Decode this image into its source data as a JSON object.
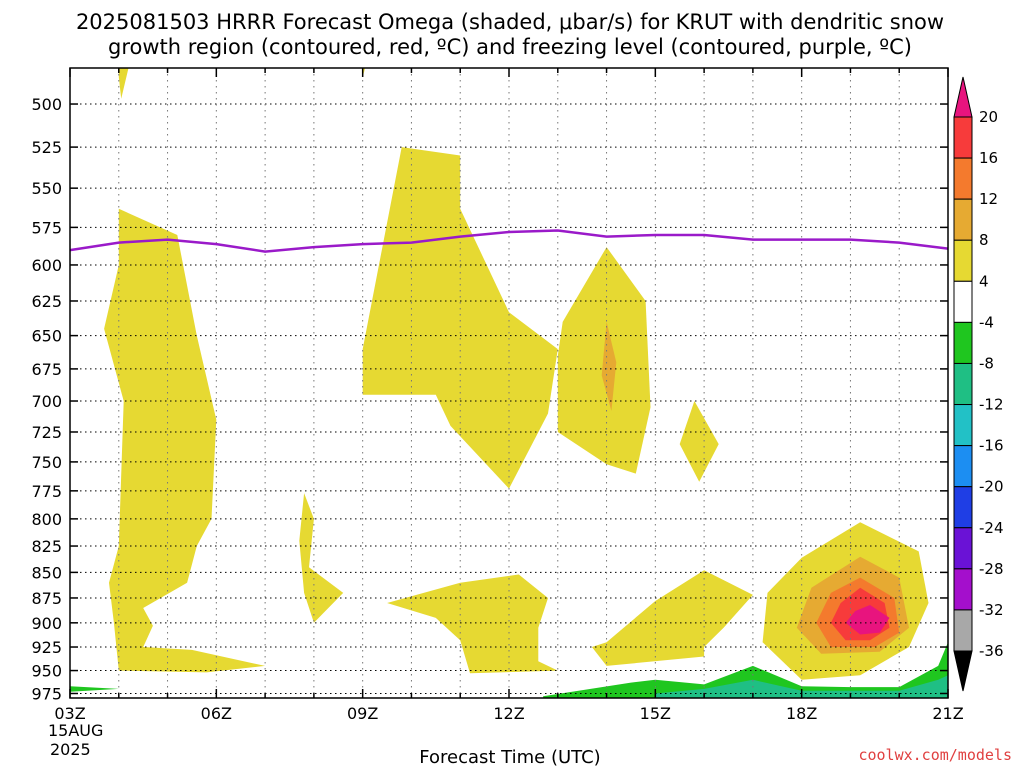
{
  "title": {
    "line1": "2025081503 HRRR Forecast Omega (shaded, μbar/s) for KRUT with dendritic snow",
    "line2": "growth region (contoured, red, ºC) and freezing level (contoured, purple, ºC)"
  },
  "credit": "coolwx.com/models",
  "chart_data": {
    "type": "time-height contour",
    "xlabel": "Forecast Time (UTC)",
    "x_ticks": [
      {
        "hour": 0,
        "label": "03Z"
      },
      {
        "hour": 3,
        "label": "06Z"
      },
      {
        "hour": 6,
        "label": "09Z"
      },
      {
        "hour": 9,
        "label": "12Z"
      },
      {
        "hour": 12,
        "label": "15Z"
      },
      {
        "hour": 15,
        "label": "18Z"
      },
      {
        "hour": 18,
        "label": "21Z"
      }
    ],
    "x_start_date": [
      "15AUG",
      "2025"
    ],
    "xlim": [
      0,
      18
    ],
    "ylabel": "",
    "y_scale": "log-pressure",
    "ylim_hpa": [
      980,
      480
    ],
    "y_ticks": [
      500,
      525,
      550,
      575,
      600,
      625,
      650,
      675,
      700,
      725,
      750,
      775,
      800,
      825,
      850,
      875,
      900,
      925,
      950,
      975
    ],
    "grid": true,
    "colorbar": {
      "labels": [
        "20",
        "16",
        "12",
        "8",
        "4",
        "-4",
        "-8",
        "-12",
        "-16",
        "-20",
        "-24",
        "-28",
        "-32",
        "-36"
      ],
      "colors": {
        "above_20": "#e8147e",
        "16_20": "#f73b3b",
        "12_16": "#f47a2d",
        "8_12": "#e6aa32",
        "4_8": "#e6d932",
        "neutral": "#ffffff",
        "m8_m4": "#1fc61f",
        "m12_m8": "#1fbf84",
        "m16_m12": "#22c1c6",
        "m20_m16": "#1c8ef2",
        "m24_m20": "#1f3ee5",
        "m28_m24": "#6a12d6",
        "m32_m28": "#a40fcc",
        "m36_m32": "#a8a8a8",
        "below_m36": "#000000"
      }
    },
    "freezing_level_color": "#9a1ac9",
    "ground_color": "#a0522d",
    "freezing_level": {
      "hour": [
        0,
        1,
        2,
        3,
        4,
        5,
        6,
        7,
        8,
        9,
        10,
        11,
        12,
        13,
        14,
        15,
        16,
        17,
        18
      ],
      "pressure": [
        590,
        585,
        583,
        586,
        591,
        588,
        586,
        585,
        581,
        578,
        577,
        581,
        580,
        580,
        583,
        583,
        583,
        585,
        589
      ]
    },
    "omega_regions": [
      {
        "level": "4_8",
        "points": [
          [
            1.0,
            480
          ],
          [
            1.2,
            480
          ],
          [
            1.05,
            497
          ],
          [
            1.0,
            485
          ]
        ]
      },
      {
        "level": "4_8",
        "points": [
          [
            6.0,
            480
          ],
          [
            6.05,
            480
          ],
          [
            6.0,
            485
          ]
        ]
      },
      {
        "level": "4_8",
        "points": [
          [
            1.0,
            563
          ],
          [
            2.2,
            580
          ],
          [
            2.6,
            650
          ],
          [
            3.0,
            715
          ],
          [
            2.9,
            800
          ],
          [
            2.6,
            825
          ],
          [
            2.4,
            860
          ],
          [
            1.5,
            885
          ],
          [
            1.7,
            903
          ],
          [
            1.5,
            925
          ],
          [
            2.5,
            928
          ],
          [
            4.0,
            945
          ],
          [
            2.8,
            952
          ],
          [
            1.0,
            950
          ],
          [
            0.9,
            900
          ],
          [
            0.8,
            860
          ],
          [
            1.0,
            825
          ],
          [
            1.1,
            700
          ],
          [
            0.7,
            645
          ],
          [
            1.0,
            600
          ]
        ]
      },
      {
        "level": "4_8",
        "points": [
          [
            4.8,
            777
          ],
          [
            5.0,
            800
          ],
          [
            4.9,
            845
          ],
          [
            5.6,
            870
          ],
          [
            5.0,
            900
          ],
          [
            4.8,
            870
          ],
          [
            4.7,
            820
          ]
        ]
      },
      {
        "level": "4_8",
        "points": [
          [
            6.0,
            660
          ],
          [
            6.8,
            525
          ],
          [
            8.0,
            530
          ],
          [
            8.0,
            563
          ],
          [
            9.0,
            633
          ],
          [
            10.0,
            660
          ],
          [
            9.8,
            710
          ],
          [
            9.0,
            773
          ],
          [
            7.8,
            720
          ],
          [
            7.5,
            695
          ],
          [
            6.0,
            695
          ]
        ]
      },
      {
        "level": "4_8",
        "points": [
          [
            10.1,
            640
          ],
          [
            11.0,
            588
          ],
          [
            11.8,
            625
          ],
          [
            11.9,
            705
          ],
          [
            11.6,
            760
          ],
          [
            11.0,
            752
          ],
          [
            10.0,
            725
          ],
          [
            10.0,
            665
          ]
        ]
      },
      {
        "level": "8_12",
        "points": [
          [
            11.0,
            640
          ],
          [
            11.2,
            670
          ],
          [
            11.1,
            708
          ],
          [
            10.9,
            680
          ]
        ]
      },
      {
        "level": "4_8",
        "points": [
          [
            12.8,
            700
          ],
          [
            13.3,
            735
          ],
          [
            12.9,
            767
          ],
          [
            12.5,
            735
          ]
        ]
      },
      {
        "level": "4_8",
        "points": [
          [
            6.5,
            880
          ],
          [
            8.0,
            860
          ],
          [
            9.2,
            852
          ],
          [
            9.8,
            875
          ],
          [
            9.6,
            905
          ],
          [
            9.6,
            940
          ],
          [
            10.0,
            950
          ],
          [
            8.2,
            953
          ],
          [
            8.0,
            918
          ],
          [
            7.5,
            895
          ]
        ]
      },
      {
        "level": "4_8",
        "points": [
          [
            11.0,
            920
          ],
          [
            12.0,
            878
          ],
          [
            13.0,
            848
          ],
          [
            14.0,
            872
          ],
          [
            13.4,
            905
          ],
          [
            13.0,
            925
          ],
          [
            13.0,
            935
          ],
          [
            11.0,
            945
          ],
          [
            10.7,
            925
          ]
        ]
      },
      {
        "level": "4_8",
        "points": [
          [
            15.0,
            836
          ],
          [
            16.2,
            803
          ],
          [
            17.4,
            830
          ],
          [
            17.6,
            880
          ],
          [
            17.2,
            925
          ],
          [
            16.2,
            955
          ],
          [
            15.0,
            960
          ],
          [
            14.2,
            920
          ],
          [
            14.3,
            870
          ]
        ]
      },
      {
        "level": "8_12",
        "points": [
          [
            15.2,
            865
          ],
          [
            16.2,
            835
          ],
          [
            17.0,
            855
          ],
          [
            17.2,
            905
          ],
          [
            16.6,
            930
          ],
          [
            15.4,
            932
          ],
          [
            14.9,
            905
          ]
        ]
      },
      {
        "level": "12_16",
        "points": [
          [
            15.6,
            870
          ],
          [
            16.2,
            855
          ],
          [
            16.9,
            875
          ],
          [
            17.0,
            910
          ],
          [
            16.5,
            925
          ],
          [
            15.6,
            925
          ],
          [
            15.3,
            900
          ]
        ]
      },
      {
        "level": "16_20",
        "points": [
          [
            15.8,
            880
          ],
          [
            16.2,
            865
          ],
          [
            16.7,
            880
          ],
          [
            16.8,
            905
          ],
          [
            16.4,
            918
          ],
          [
            15.9,
            918
          ],
          [
            15.6,
            900
          ]
        ]
      },
      {
        "level": "above_20",
        "points": [
          [
            16.1,
            888
          ],
          [
            16.4,
            882
          ],
          [
            16.8,
            895
          ],
          [
            16.6,
            910
          ],
          [
            16.2,
            912
          ],
          [
            15.9,
            900
          ]
        ]
      },
      {
        "level": "m8_m4",
        "points": [
          [
            9.7,
            978
          ],
          [
            11.5,
            963
          ],
          [
            12.0,
            960
          ],
          [
            13.0,
            965
          ],
          [
            14.0,
            945
          ],
          [
            15.0,
            967
          ],
          [
            16.0,
            968
          ],
          [
            17.0,
            968
          ],
          [
            17.8,
            945
          ],
          [
            18.0,
            920
          ],
          [
            18.0,
            980
          ],
          [
            9.7,
            980
          ]
        ]
      },
      {
        "level": "m12_m8",
        "points": [
          [
            12.0,
            975
          ],
          [
            13.0,
            970
          ],
          [
            14.0,
            960
          ],
          [
            15.0,
            972
          ],
          [
            17.0,
            972
          ],
          [
            17.8,
            960
          ],
          [
            18.0,
            955
          ],
          [
            18.0,
            980
          ],
          [
            12.0,
            980
          ]
        ]
      },
      {
        "level": "m8_m4",
        "points": [
          [
            0.0,
            967
          ],
          [
            1.0,
            970
          ],
          [
            0.0,
            973
          ]
        ]
      }
    ]
  }
}
